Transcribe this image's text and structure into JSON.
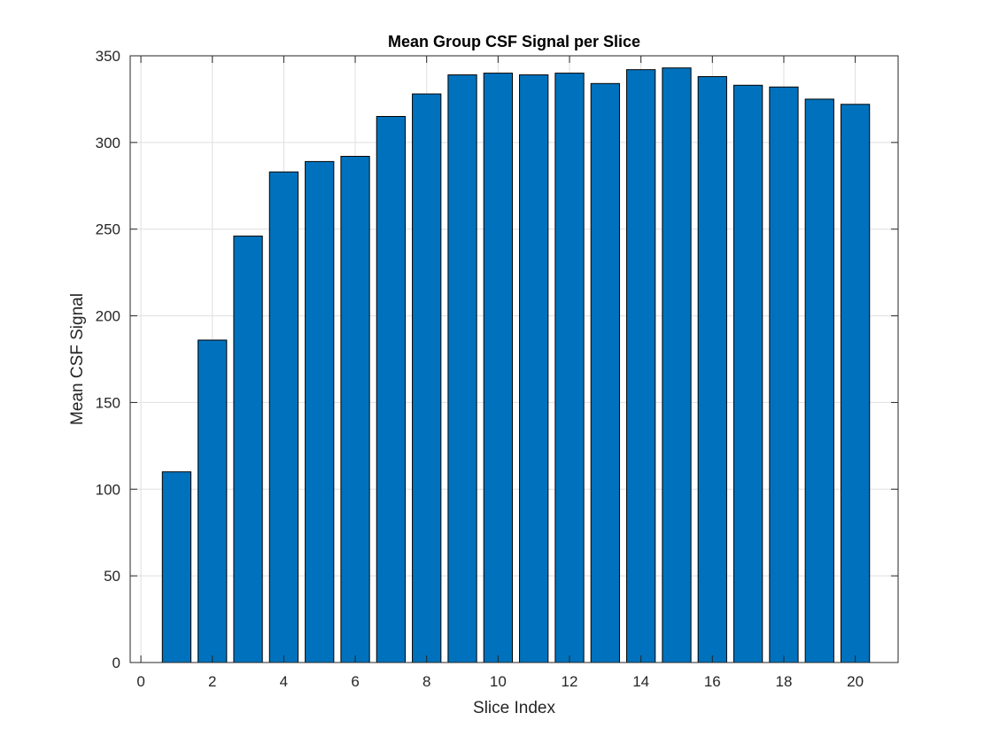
{
  "chart_data": {
    "type": "bar",
    "title": "Mean Group CSF Signal per Slice",
    "xlabel": "Slice Index",
    "ylabel": "Mean CSF Signal",
    "x": [
      1,
      2,
      3,
      4,
      5,
      6,
      7,
      8,
      9,
      10,
      11,
      12,
      13,
      14,
      15,
      16,
      17,
      18,
      19,
      20
    ],
    "values": [
      110,
      186,
      246,
      283,
      289,
      292,
      315,
      328,
      339,
      340,
      339,
      340,
      334,
      342,
      343,
      338,
      333,
      332,
      325,
      322
    ],
    "xlim": [
      -0.3,
      21.2
    ],
    "ylim": [
      0,
      350
    ],
    "xticks": [
      0,
      2,
      4,
      6,
      8,
      10,
      12,
      14,
      16,
      18,
      20
    ],
    "yticks": [
      0,
      50,
      100,
      150,
      200,
      250,
      300,
      350
    ],
    "grid": true,
    "bar_color": "#0072BD",
    "edge_color": "#000000"
  }
}
